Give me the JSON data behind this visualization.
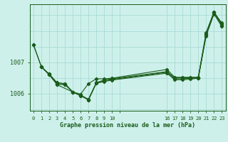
{
  "title": "Graphe pression niveau de la mer (hPa)",
  "bg_color": "#cef0eb",
  "grid_color": "#aadbd5",
  "line_color": "#1a5c1a",
  "series": [
    {
      "xi": [
        0,
        1,
        2,
        3,
        4,
        5,
        6,
        7,
        8,
        9,
        10,
        17,
        18,
        19,
        20,
        21,
        22,
        23,
        24
      ],
      "y": [
        1007.55,
        1006.85,
        1006.62,
        1006.35,
        1006.32,
        1006.05,
        1005.98,
        1006.32,
        1006.47,
        1006.47,
        1006.49,
        1006.77,
        1006.52,
        1006.52,
        1006.52,
        1006.52,
        1007.95,
        1008.6,
        1008.25
      ]
    },
    {
      "xi": [
        1,
        2,
        3,
        4,
        5,
        6,
        7,
        8,
        9,
        10,
        17,
        18,
        19,
        20,
        21,
        22,
        23,
        24
      ],
      "y": [
        1006.85,
        1006.62,
        1006.32,
        1006.3,
        1006.05,
        1005.95,
        1005.82,
        1006.35,
        1006.43,
        1006.47,
        1006.7,
        1006.5,
        1006.5,
        1006.5,
        1006.5,
        1007.9,
        1008.6,
        1008.22
      ]
    },
    {
      "xi": [
        1,
        2,
        3,
        4,
        5,
        6,
        7,
        8,
        9,
        10,
        17,
        18,
        19,
        20,
        21,
        22,
        23,
        24
      ],
      "y": [
        1006.85,
        1006.6,
        1006.3,
        1006.28,
        1006.05,
        1005.93,
        1005.8,
        1006.33,
        1006.41,
        1006.45,
        1006.68,
        1006.47,
        1006.47,
        1006.49,
        1006.5,
        1007.87,
        1008.58,
        1008.18
      ]
    },
    {
      "xi": [
        0,
        1,
        2,
        3,
        5,
        6,
        7,
        8,
        9,
        10,
        17,
        18,
        19,
        20,
        21,
        22,
        23,
        24
      ],
      "y": [
        1007.55,
        1006.85,
        1006.6,
        1006.28,
        1006.05,
        1005.93,
        1005.8,
        1006.33,
        1006.38,
        1006.43,
        1006.65,
        1006.44,
        1006.44,
        1006.46,
        1006.49,
        1007.84,
        1008.54,
        1008.14
      ]
    }
  ],
  "x_positions": [
    0,
    1,
    2,
    3,
    4,
    5,
    6,
    7,
    8,
    9,
    10,
    11,
    17,
    18,
    19,
    20,
    21,
    22,
    23,
    24
  ],
  "x_labels": [
    "0",
    "1",
    "2",
    "3",
    "4",
    "5",
    "6",
    "7",
    "8",
    "9",
    "10",
    "",
    "16",
    "17",
    "18",
    "19",
    "20",
    "21",
    "22",
    "23"
  ],
  "ytick_positions": [
    1006.0,
    1007.0
  ],
  "ytick_labels": [
    "1006",
    "1007"
  ],
  "xlim": [
    -0.5,
    24.5
  ],
  "ylim": [
    1005.45,
    1008.85
  ],
  "hgrid_values": [
    1005.5,
    1006.0,
    1006.5,
    1007.0,
    1007.5,
    1008.0,
    1008.5
  ],
  "markersize": 2.2
}
